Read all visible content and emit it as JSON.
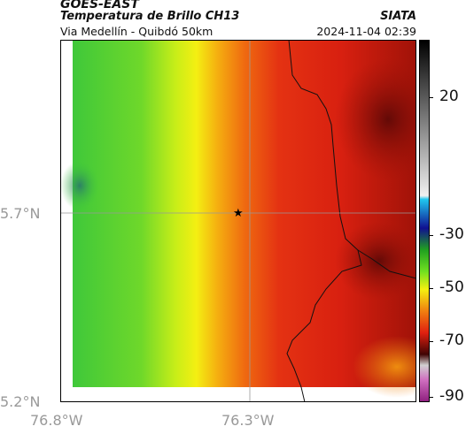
{
  "header": {
    "satellite": "GOES-EAST",
    "product": "Temperatura de Brillo CH13",
    "route": "Via Medellín - Quibdó 50km",
    "agency": "SIATA",
    "datetime": "2024-11-04 02:39"
  },
  "map": {
    "lat_ticks": [
      "5.7°N",
      "5.2°N"
    ],
    "lon_ticks": [
      "76.8°W",
      "76.3°W"
    ],
    "marker": "star",
    "gridlines": true
  },
  "colorbar": {
    "labels": [
      "20",
      "-30",
      "-50",
      "-70",
      "-90"
    ],
    "range": [
      -95,
      40
    ],
    "unit_hint": "°C"
  },
  "colors": {
    "green": "#2fc832",
    "yellow": "#f5ef10",
    "orange": "#f08a10",
    "red": "#e02010",
    "darkred": "#6a0a08"
  }
}
